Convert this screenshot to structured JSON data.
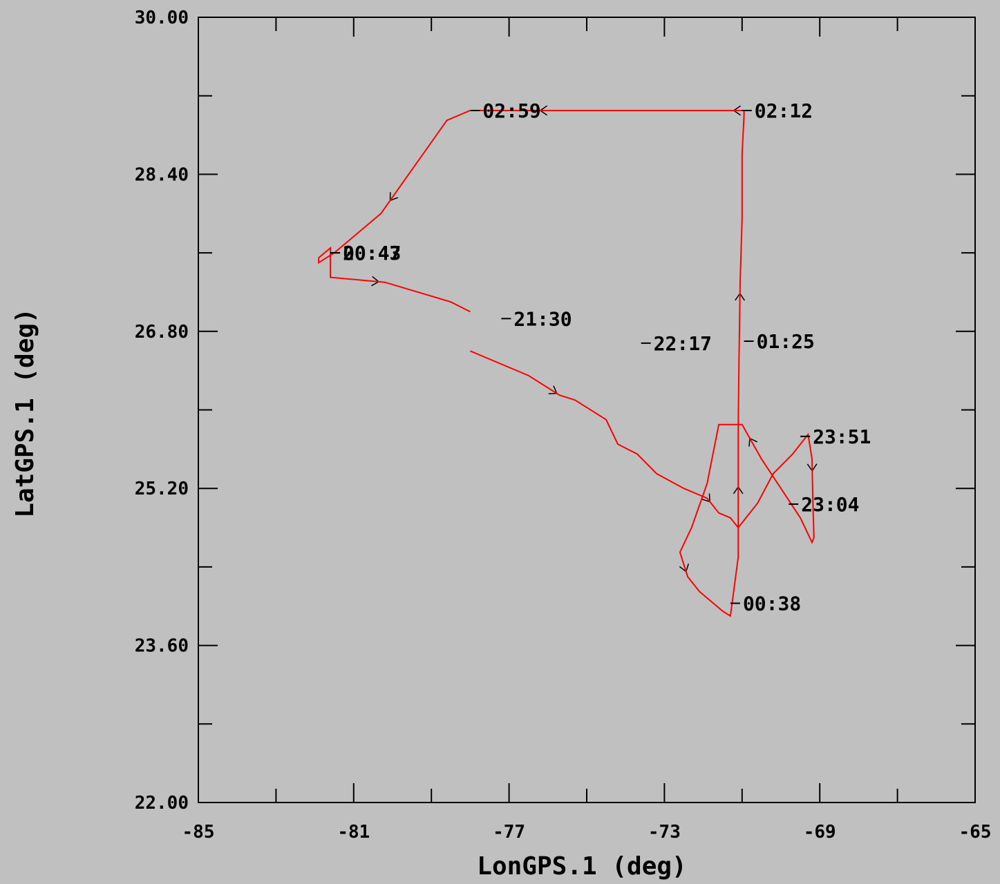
{
  "chart_data": {
    "type": "line",
    "title": "",
    "xlabel": "LonGPS.1 (deg)",
    "ylabel": "LatGPS.1 (deg)",
    "xlim": [
      -85,
      -65
    ],
    "ylim": [
      22.0,
      30.0
    ],
    "x_ticks": [
      "-85",
      "-81",
      "-77",
      "-73",
      "-69",
      "-65"
    ],
    "y_ticks": [
      "22.00",
      "23.60",
      "25.20",
      "26.80",
      "28.40",
      "30.00"
    ],
    "grid": false,
    "line_color": "#ff0000",
    "series": [
      {
        "x": [
          -78.0,
          -76.5,
          -75.7,
          -75.3,
          -74.5,
          -74.2,
          -73.7,
          -73.2,
          -72.5,
          -71.9,
          -71.6,
          -71.3,
          -71.1,
          -70.6,
          -70.2,
          -69.7,
          -69.3,
          -69.2,
          -69.18,
          -69.15,
          -69.2,
          -69.5,
          -70.0,
          -70.5,
          -71.0,
          -71.6,
          -71.9,
          -72.3,
          -72.6,
          -72.4,
          -72.1,
          -71.8,
          -71.5,
          -71.3,
          -71.1,
          -71.1,
          -71.1,
          -71.08,
          -71.05,
          -71.0,
          -71.0,
          -70.95,
          -70.95,
          -78.0,
          -78.6,
          -80.3,
          -81.5,
          -81.9,
          -81.9,
          -81.6,
          -81.6,
          -80.2,
          -78.5,
          -78.0
        ],
        "y": [
          26.6,
          26.35,
          26.15,
          26.1,
          25.9,
          25.65,
          25.55,
          25.35,
          25.2,
          25.1,
          24.95,
          24.9,
          24.8,
          25.05,
          25.35,
          25.55,
          25.75,
          25.5,
          25.1,
          24.7,
          24.65,
          24.9,
          25.2,
          25.5,
          25.85,
          25.85,
          25.25,
          24.8,
          24.55,
          24.3,
          24.15,
          24.05,
          23.95,
          23.9,
          24.5,
          25.1,
          25.8,
          26.5,
          27.3,
          27.95,
          28.6,
          29.0,
          29.05,
          29.05,
          28.95,
          28.0,
          27.6,
          27.5,
          27.55,
          27.65,
          27.35,
          27.3,
          27.1,
          27.0
        ]
      }
    ],
    "time_labels": [
      {
        "text": "02:59",
        "x": -78.0,
        "y": 29.05
      },
      {
        "text": "02:12",
        "x": -71.0,
        "y": 29.05
      },
      {
        "text": "00:47",
        "x": -81.6,
        "y": 27.6
      },
      {
        "text": "20:43",
        "x": -81.6,
        "y": 27.6
      },
      {
        "text": "21:30",
        "x": -77.2,
        "y": 26.93
      },
      {
        "text": "22:17",
        "x": -73.6,
        "y": 26.68
      },
      {
        "text": "01:25",
        "x": -70.95,
        "y": 26.7
      },
      {
        "text": "23:51",
        "x": -69.5,
        "y": 25.73
      },
      {
        "text": "23:04",
        "x": -69.8,
        "y": 25.04
      },
      {
        "text": "00:38",
        "x": -71.3,
        "y": 24.03
      }
    ]
  }
}
